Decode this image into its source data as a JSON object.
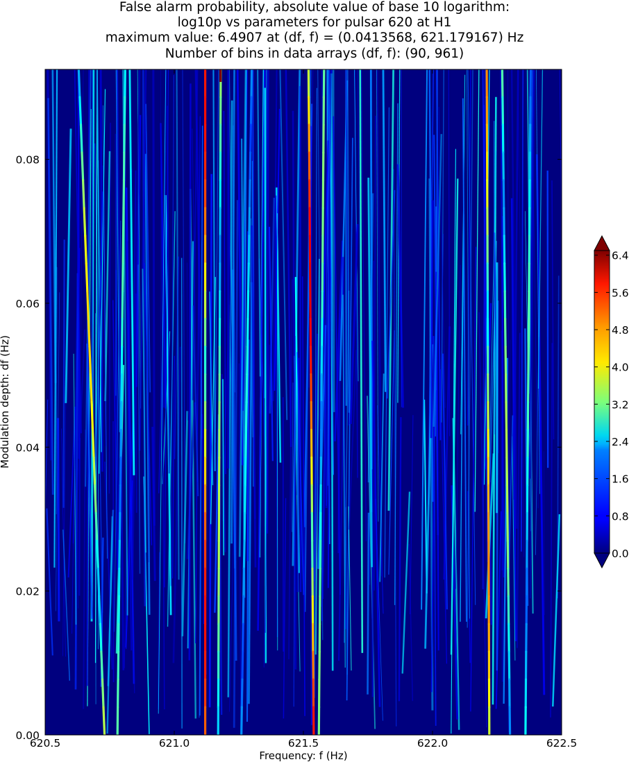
{
  "title_lines": [
    "False alarm probability, absolute value of base 10 logarithm:",
    "log10p vs parameters for pulsar 620 at H1",
    "maximum value: 6.4907 at (df, f) = (0.0413568, 621.179167) Hz",
    "Number of bins in data arrays (df, f): (90, 961)"
  ],
  "chart_data": {
    "type": "heatmap",
    "title": "False alarm probability, absolute value of base 10 logarithm: log10p vs parameters for pulsar 620 at H1 maximum value: 6.4907 at (df, f) = (0.0413568, 621.179167) Hz Number of bins in data arrays (df, f): (90, 961)",
    "xlabel": "Frequency: f (Hz)",
    "ylabel": "Modulation depth: df (Hz)",
    "xlim": [
      620.5,
      622.5
    ],
    "ylim": [
      0.0,
      0.0925
    ],
    "x_ticks": [
      "620.5",
      "621.0",
      "621.5",
      "622.0",
      "622.5"
    ],
    "x_tick_values": [
      620.5,
      621.0,
      621.5,
      622.0,
      622.5
    ],
    "y_ticks": [
      "0.00",
      "0.02",
      "0.04",
      "0.06",
      "0.08"
    ],
    "y_tick_values": [
      0.0,
      0.02,
      0.04,
      0.06,
      0.08
    ],
    "colormap": "jet",
    "colorbar": {
      "ticks": [
        "0.0",
        "0.8",
        "1.6",
        "2.4",
        "3.2",
        "4.0",
        "4.8",
        "5.6",
        "6.4"
      ],
      "tick_values": [
        0.0,
        0.8,
        1.6,
        2.4,
        3.2,
        4.0,
        4.8,
        5.6,
        6.4
      ],
      "range": [
        0.0,
        6.5
      ],
      "extend": "both"
    },
    "max_value": 6.4907,
    "max_location": {
      "df": 0.0413568,
      "f": 621.179167
    },
    "bins": {
      "df": 90,
      "f": 961
    },
    "ridges": [
      {
        "f_top": 620.63,
        "f_bottom": 620.73,
        "peak": 4.3
      },
      {
        "f_top": 620.81,
        "f_bottom": 620.78,
        "peak": 3.0
      },
      {
        "f_top": 621.12,
        "f_bottom": 621.12,
        "peak": 5.6
      },
      {
        "f_top": 621.18,
        "f_bottom": 621.17,
        "peak": 3.6
      },
      {
        "f_top": 621.3,
        "f_bottom": 621.26,
        "peak": 2.6
      },
      {
        "f_top": 621.52,
        "f_bottom": 621.54,
        "peak": 5.9
      },
      {
        "f_top": 621.58,
        "f_bottom": 621.56,
        "peak": 3.3
      },
      {
        "f_top": 622.21,
        "f_bottom": 622.22,
        "peak": 4.8
      },
      {
        "f_top": 622.27,
        "f_bottom": 622.3,
        "peak": 3.6
      },
      {
        "f_top": 622.38,
        "f_bottom": 622.36,
        "peak": 3.0
      }
    ]
  }
}
